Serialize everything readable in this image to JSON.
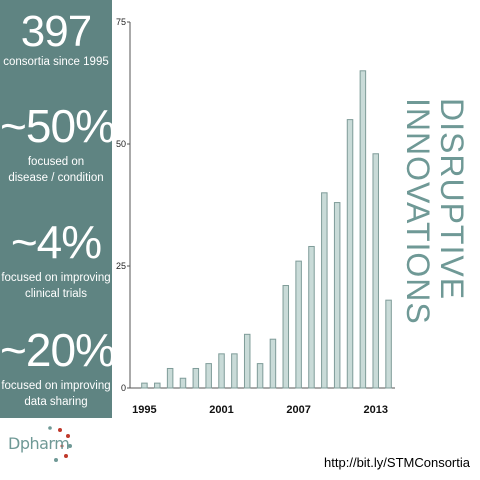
{
  "stats": [
    {
      "big": "397",
      "lines": [
        "consortia since 1995"
      ]
    },
    {
      "big": "~50%",
      "lines": [
        "focused on",
        "disease / condition"
      ]
    },
    {
      "big": "~4%",
      "lines": [
        "focused on improving",
        "clinical trials"
      ]
    },
    {
      "big": "~20%",
      "lines": [
        "focused on improving",
        "data sharing"
      ]
    }
  ],
  "side_title": {
    "line1": "DISRUPTIVE",
    "line2": "INNOVATIONS"
  },
  "logo": {
    "text": "Dpharm"
  },
  "url": "http://bit.ly/STMConsortia",
  "colors": {
    "sidebar": "#5f8482",
    "bar_fill": "#c9dbd8",
    "bar_edge": "#7f9c99",
    "accent": "#6f9996"
  },
  "chart_data": {
    "type": "bar",
    "categories": [
      "1995",
      "1996",
      "1997",
      "1998",
      "1999",
      "2000",
      "2001",
      "2002",
      "2003",
      "2004",
      "2005",
      "2006",
      "2007",
      "2008",
      "2009",
      "2010",
      "2011",
      "2012",
      "2013",
      "2014"
    ],
    "x_tick_labels": [
      "1995",
      "2001",
      "2007",
      "2013"
    ],
    "x_tick_categories": [
      "1995",
      "2001",
      "2007",
      "2013"
    ],
    "values": [
      1,
      1,
      4,
      2,
      4,
      5,
      7,
      7,
      11,
      5,
      10,
      21,
      26,
      29,
      40,
      38,
      55,
      65,
      48,
      18
    ],
    "ylim": [
      0,
      75
    ],
    "y_ticks": [
      0,
      25,
      50,
      75
    ],
    "title": "",
    "xlabel": "",
    "ylabel": "",
    "grid": false
  }
}
